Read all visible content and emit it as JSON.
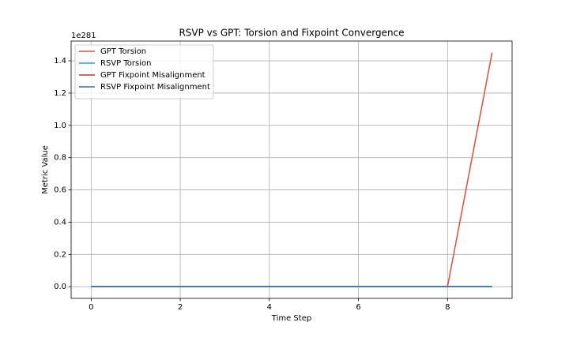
{
  "chart_data": {
    "type": "line",
    "title": "RSVP vs GPT: Torsion and Fixpoint Convergence",
    "x_label": "Time Step",
    "y_label": "Metric Value",
    "y_offset_label": "1e281",
    "x": [
      0,
      1,
      2,
      3,
      4,
      5,
      6,
      7,
      8,
      9
    ],
    "series": [
      {
        "name": "GPT Torsion",
        "color": "#e74c3c",
        "values": [
          0,
          0,
          0,
          0,
          0,
          0,
          0,
          0,
          0,
          1.45
        ]
      },
      {
        "name": "RSVP Torsion",
        "color": "#3498db",
        "values": [
          0,
          0,
          0,
          0,
          0,
          0,
          0,
          0,
          0,
          0
        ]
      },
      {
        "name": "GPT Fixpoint Misalignment",
        "color": "#c0392b",
        "values": [
          0,
          0,
          0,
          0,
          0,
          0,
          0,
          0,
          0,
          0
        ]
      },
      {
        "name": "RSVP Fixpoint Misalignment",
        "color": "#2e6da4",
        "values": [
          0,
          0,
          0,
          0,
          0,
          0,
          0,
          0,
          0,
          0
        ]
      }
    ],
    "xlim": [
      -0.45,
      9.45
    ],
    "xticks": [
      0,
      2,
      4,
      6,
      8
    ],
    "ylim": [
      -0.0725,
      1.5225
    ],
    "yticks": [
      {
        "value": 0,
        "label": "0.0"
      },
      0.2,
      0.4,
      0.6,
      0.8,
      {
        "value": 1,
        "label": "1.0"
      },
      1.2,
      1.4
    ],
    "grid": true,
    "legend": "upper left"
  }
}
